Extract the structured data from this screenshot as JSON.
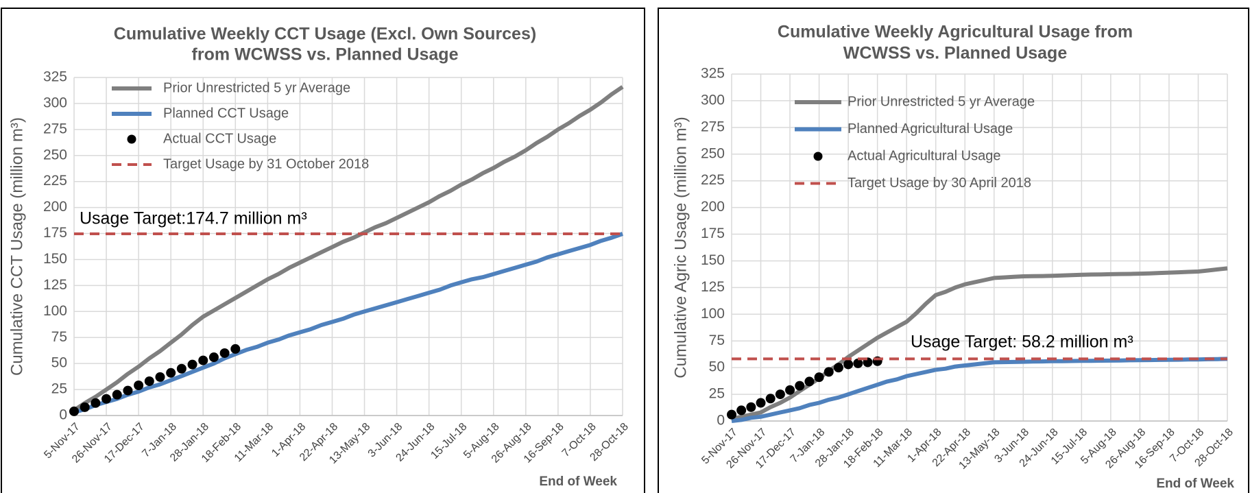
{
  "chart_data": [
    {
      "type": "line",
      "title": [
        "Cumulative Weekly CCT Usage (Excl. Own Sources)",
        "from WCWSS vs. Planned Usage"
      ],
      "ylabel": "Cumulative CCT Usage (million m³)",
      "xlabel": "End of Week",
      "annotation": "Usage Target:174.7 million m³",
      "categories": [
        "5-Nov-17",
        null,
        null,
        "26-Nov-17",
        null,
        null,
        "17-Dec-17",
        null,
        null,
        "7-Jan-18",
        null,
        null,
        "28-Jan-18",
        null,
        null,
        "18-Feb-18",
        null,
        null,
        "11-Mar-18",
        null,
        null,
        "1-Apr-18",
        null,
        null,
        "22-Apr-18",
        null,
        null,
        "13-May-18",
        null,
        null,
        "3-Jun-18",
        null,
        null,
        "24-Jun-18",
        null,
        null,
        "15-Jul-18",
        null,
        null,
        "5-Aug-18",
        null,
        null,
        "26-Aug-18",
        null,
        null,
        "16-Sep-18",
        null,
        null,
        "7-Oct-18",
        null,
        null,
        "28-Oct-18"
      ],
      "series": [
        {
          "name": "Prior Unrestricted 5 yr Average",
          "color": "#7f7f7f",
          "style": "line",
          "values": [
            5,
            12,
            18,
            25,
            32,
            40,
            47,
            55,
            62,
            70,
            78,
            87,
            95,
            101,
            107,
            113,
            119,
            125,
            131,
            136,
            142,
            147,
            152,
            157,
            162,
            167,
            171,
            176,
            181,
            185,
            190,
            195,
            200,
            205,
            211,
            216,
            222,
            227,
            233,
            238,
            244,
            249,
            255,
            262,
            268,
            275,
            281,
            288,
            294,
            301,
            309,
            316
          ]
        },
        {
          "name": "Planned CCT Usage",
          "color": "#4f81bd",
          "style": "line",
          "values": [
            3,
            6,
            10,
            13,
            16,
            20,
            23,
            27,
            30,
            34,
            38,
            42,
            46,
            50,
            55,
            59,
            63,
            66,
            70,
            73,
            77,
            80,
            83,
            87,
            90,
            93,
            97,
            100,
            103,
            106,
            109,
            112,
            115,
            118,
            121,
            125,
            128,
            131,
            133,
            136,
            139,
            142,
            145,
            148,
            152,
            155,
            158,
            161,
            164,
            168,
            171,
            174.7
          ]
        },
        {
          "name": "Actual CCT Usage",
          "color": "#000000",
          "style": "marker",
          "values": [
            4,
            8,
            12,
            16,
            20,
            24,
            29,
            33,
            37,
            41,
            45,
            49,
            53,
            56,
            60,
            64,
            null,
            null,
            null,
            null,
            null,
            null,
            null,
            null,
            null,
            null,
            null,
            null,
            null,
            null,
            null,
            null,
            null,
            null,
            null,
            null,
            null,
            null,
            null,
            null,
            null,
            null,
            null,
            null,
            null,
            null,
            null,
            null,
            null,
            null,
            null,
            null
          ]
        },
        {
          "name": "Target Usage by 31 October 2018",
          "color": "#c0504d",
          "style": "dashed",
          "value": 174.7
        }
      ],
      "ylim": [
        0,
        325
      ],
      "yticks": [
        0,
        25,
        50,
        75,
        100,
        125,
        150,
        175,
        200,
        225,
        250,
        275,
        300,
        325
      ],
      "grid": true,
      "legend": "upper left"
    },
    {
      "type": "line",
      "title": [
        "Cumulative Weekly Agricultural Usage from",
        "WCWSS vs. Planned Usage"
      ],
      "ylabel": "Cumulative Agric Usage (million m³)",
      "xlabel": "End of Week",
      "annotation": "Usage Target: 58.2 million m³",
      "categories": [
        "5-Nov-17",
        null,
        null,
        "26-Nov-17",
        null,
        null,
        "17-Dec-17",
        null,
        null,
        "7-Jan-18",
        null,
        null,
        "28-Jan-18",
        null,
        null,
        "18-Feb-18",
        null,
        null,
        "11-Mar-18",
        null,
        null,
        "1-Apr-18",
        null,
        null,
        "22-Apr-18",
        null,
        null,
        "13-May-18",
        null,
        null,
        "3-Jun-18",
        null,
        null,
        "24-Jun-18",
        null,
        null,
        "15-Jul-18",
        null,
        null,
        "5-Aug-18",
        null,
        null,
        "26-Aug-18",
        null,
        null,
        "16-Sep-18",
        null,
        null,
        "7-Oct-18",
        null,
        null,
        "28-Oct-18"
      ],
      "series": [
        {
          "name": "Prior Unrestricted 5 yr Average",
          "color": "#7f7f7f",
          "style": "line",
          "values": [
            2,
            4,
            6,
            8,
            13,
            17,
            22,
            28,
            34,
            40,
            47,
            53,
            60,
            66,
            72,
            78,
            83,
            88,
            93,
            101,
            110,
            118,
            121,
            125,
            128,
            130,
            132,
            134,
            134.5,
            135,
            135.5,
            135.7,
            135.8,
            136,
            136.3,
            136.7,
            137,
            137.2,
            137.3,
            137.5,
            137.7,
            137.8,
            138,
            138.3,
            138.7,
            139,
            139.3,
            139.7,
            140,
            141,
            142,
            143
          ]
        },
        {
          "name": "Planned Agricultural Usage",
          "color": "#4f81bd",
          "style": "line",
          "values": [
            0,
            1,
            3,
            4,
            6,
            8,
            10,
            12,
            15,
            17,
            20,
            22,
            25,
            28,
            31,
            34,
            37,
            39,
            42,
            44,
            46,
            48,
            49,
            51,
            52,
            53,
            54,
            55,
            55.2,
            55.3,
            55.5,
            55.7,
            55.8,
            56,
            56.1,
            56.2,
            56.3,
            56.4,
            56.5,
            56.6,
            56.7,
            56.9,
            57,
            57.1,
            57.2,
            57.3,
            57.4,
            57.6,
            57.7,
            57.9,
            58,
            58.2
          ]
        },
        {
          "name": "Actual Agricultural Usage",
          "color": "#000000",
          "style": "marker",
          "values": [
            6,
            10,
            13,
            17,
            21,
            25,
            29,
            33,
            37,
            41,
            46,
            50,
            53,
            54,
            55,
            56,
            null,
            null,
            null,
            null,
            null,
            null,
            null,
            null,
            null,
            null,
            null,
            null,
            null,
            null,
            null,
            null,
            null,
            null,
            null,
            null,
            null,
            null,
            null,
            null,
            null,
            null,
            null,
            null,
            null,
            null,
            null,
            null,
            null,
            null,
            null,
            null
          ]
        },
        {
          "name": "Target Usage by 30 April 2018",
          "color": "#c0504d",
          "style": "dashed",
          "value": 58.2
        }
      ],
      "ylim": [
        0,
        325
      ],
      "yticks": [
        0,
        25,
        50,
        75,
        100,
        125,
        150,
        175,
        200,
        225,
        250,
        275,
        300,
        325
      ],
      "grid": true,
      "legend": "upper left"
    }
  ]
}
